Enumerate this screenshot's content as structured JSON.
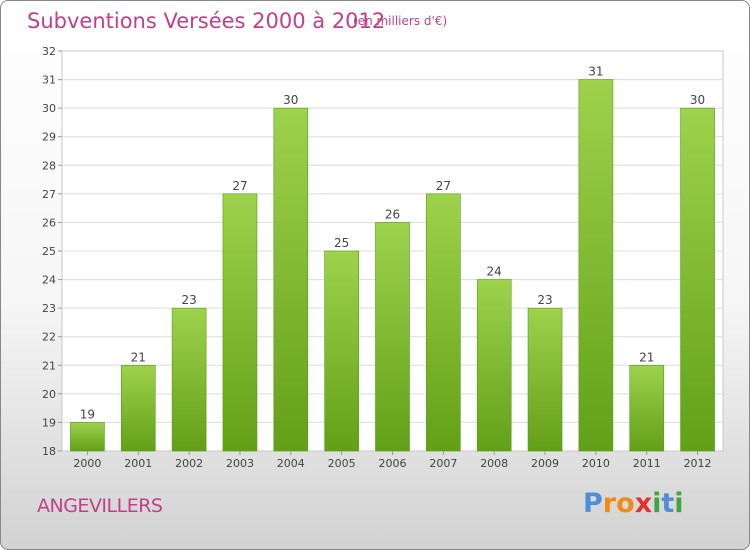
{
  "title": "Subventions Versées 2000 à 2012",
  "subtitle": "(en milliers d'€)",
  "city": "ANGEVILLERS",
  "logo": {
    "letters": [
      "P",
      "r",
      "o",
      "x",
      "i",
      "t",
      "i"
    ],
    "colors": [
      "#4f8fd8",
      "#f08a1c",
      "#f08a1c",
      "#e03232",
      "#3fa63c",
      "#4f8fd8",
      "#3fa63c"
    ]
  },
  "colors": {
    "bar_top": "#9ed24c",
    "bar_bottom": "#62a018",
    "title": "#c0408a"
  },
  "chart_data": {
    "type": "bar",
    "title": "Subventions Versées 2000 à 2012",
    "subtitle": "(en milliers d'€)",
    "categories": [
      "2000",
      "2001",
      "2002",
      "2003",
      "2004",
      "2005",
      "2006",
      "2007",
      "2008",
      "2009",
      "2010",
      "2011",
      "2012"
    ],
    "values": [
      19,
      21,
      23,
      27,
      30,
      25,
      26,
      27,
      24,
      23,
      31,
      21,
      30
    ],
    "ylim": [
      18,
      32
    ],
    "yticks": [
      18,
      19,
      20,
      21,
      22,
      23,
      24,
      25,
      26,
      27,
      28,
      29,
      30,
      31,
      32
    ],
    "grid": true,
    "data_labels": true
  }
}
